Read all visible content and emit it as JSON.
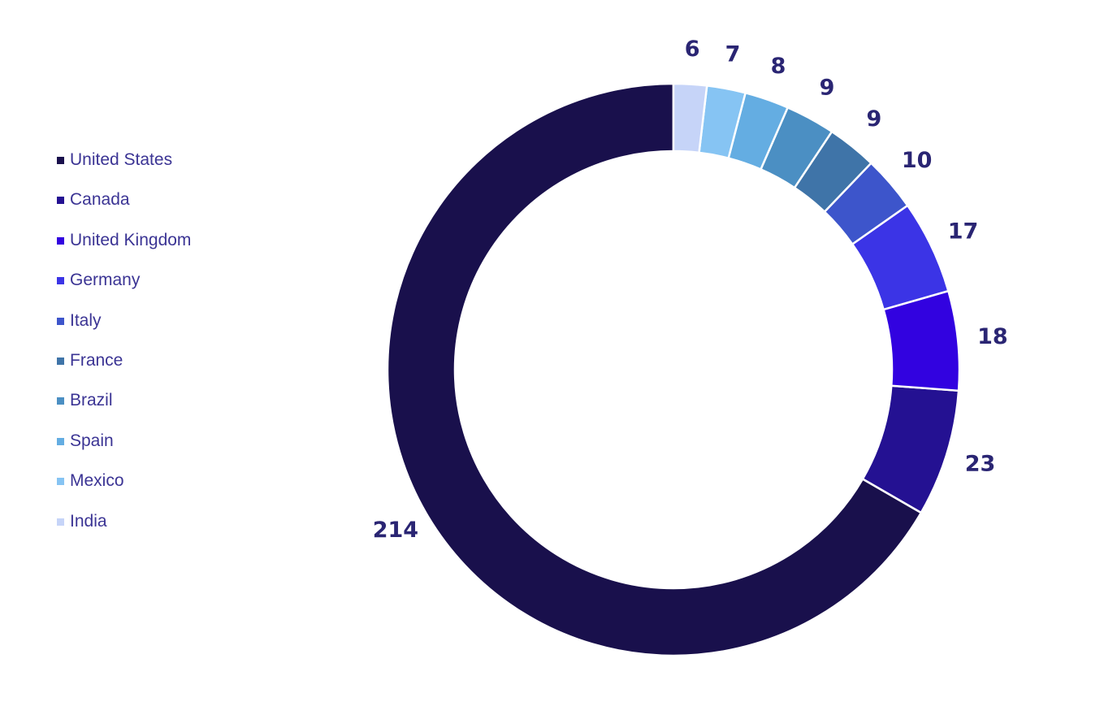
{
  "chart_data": {
    "type": "pie",
    "donut": true,
    "legend": "left",
    "categories": [
      "United States",
      "Canada",
      "United Kingdom",
      "Germany",
      "Italy",
      "France",
      "Brazil",
      "Spain",
      "Mexico",
      "India"
    ],
    "values": [
      214,
      23,
      18,
      17,
      10,
      9,
      9,
      8,
      7,
      6
    ],
    "colors": [
      "#19104c",
      "#241192",
      "#3202e0",
      "#3b34e6",
      "#3d55cb",
      "#3f74a8",
      "#4b8fc3",
      "#64ade2",
      "#86c4f3",
      "#c6d4f8"
    ]
  }
}
